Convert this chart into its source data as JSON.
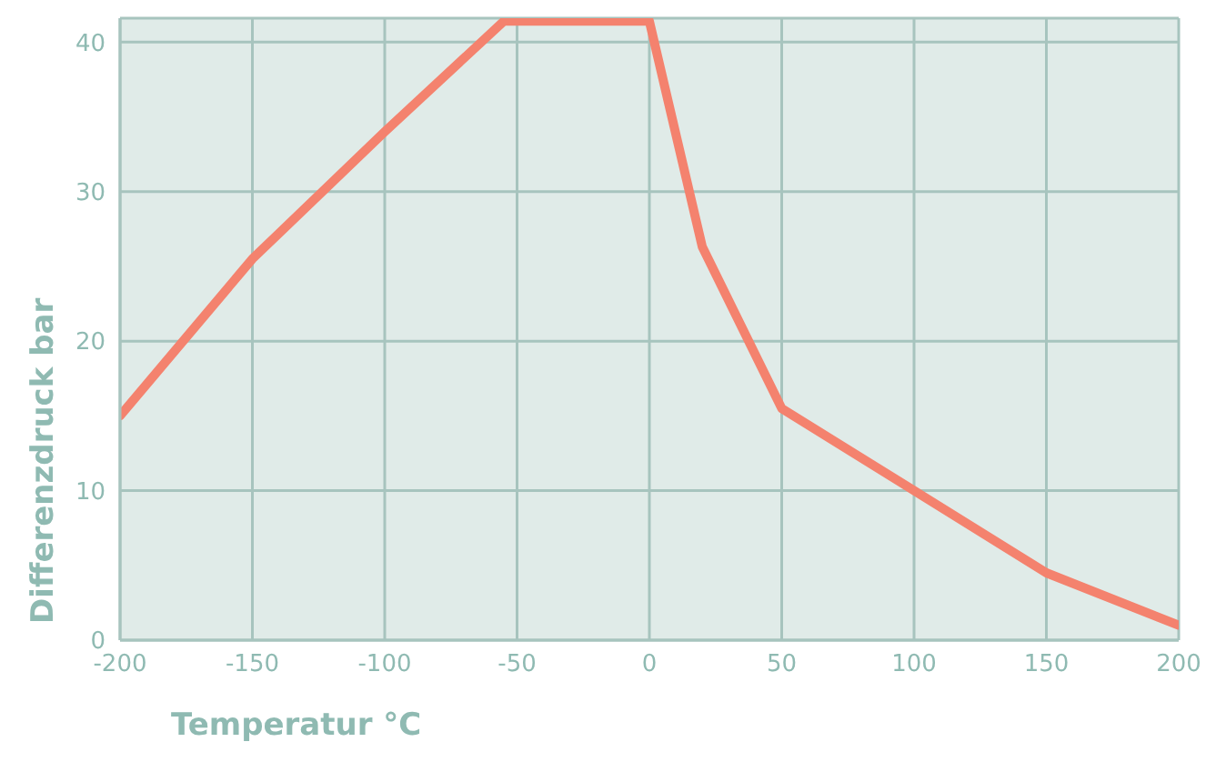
{
  "chart_data": {
    "type": "line",
    "xlabel": "Temperatur °C",
    "ylabel": "Differenzdruck bar",
    "x": [
      -200,
      -150,
      -100,
      -55,
      0,
      20,
      50,
      100,
      150,
      200
    ],
    "series": [
      {
        "color": "#f4826e",
        "values": [
          15,
          25.5,
          34,
          41.4,
          41.4,
          26.3,
          15.5,
          10,
          4.5,
          1
        ]
      }
    ],
    "xlim": [
      -200,
      200
    ],
    "xticks": [
      -200,
      -150,
      -100,
      -50,
      0,
      50,
      100,
      150,
      200
    ],
    "ylim": [
      0,
      41.6
    ],
    "yticks": [
      0,
      10,
      20,
      30,
      40
    ],
    "grid": true,
    "marker": "none",
    "line_style": "solid"
  }
}
